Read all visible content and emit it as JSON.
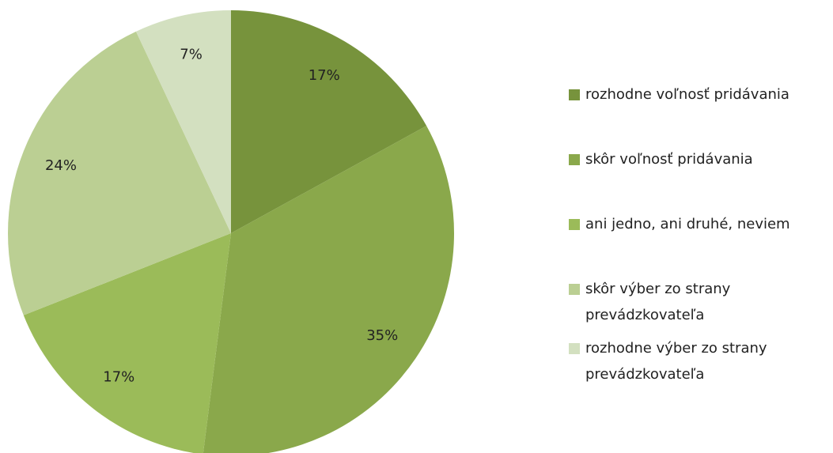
{
  "chart_data": {
    "type": "pie",
    "categories": [
      "rozhodne voľnosť pridávania",
      "skôr voľnosť pridávania",
      "ani jedno, ani druhé, neviem",
      "skôr výber zo strany prevádzkovateľa",
      "rozhodne výber zo strany prevádzkovateľa"
    ],
    "values": [
      17,
      35,
      17,
      24,
      7
    ],
    "value_labels": [
      "17%",
      "35%",
      "17%",
      "24%",
      "7%"
    ],
    "colors": [
      "#77933c",
      "#8aa84b",
      "#9bbb59",
      "#bbcf93",
      "#d3e0c0"
    ],
    "legend": "right"
  }
}
